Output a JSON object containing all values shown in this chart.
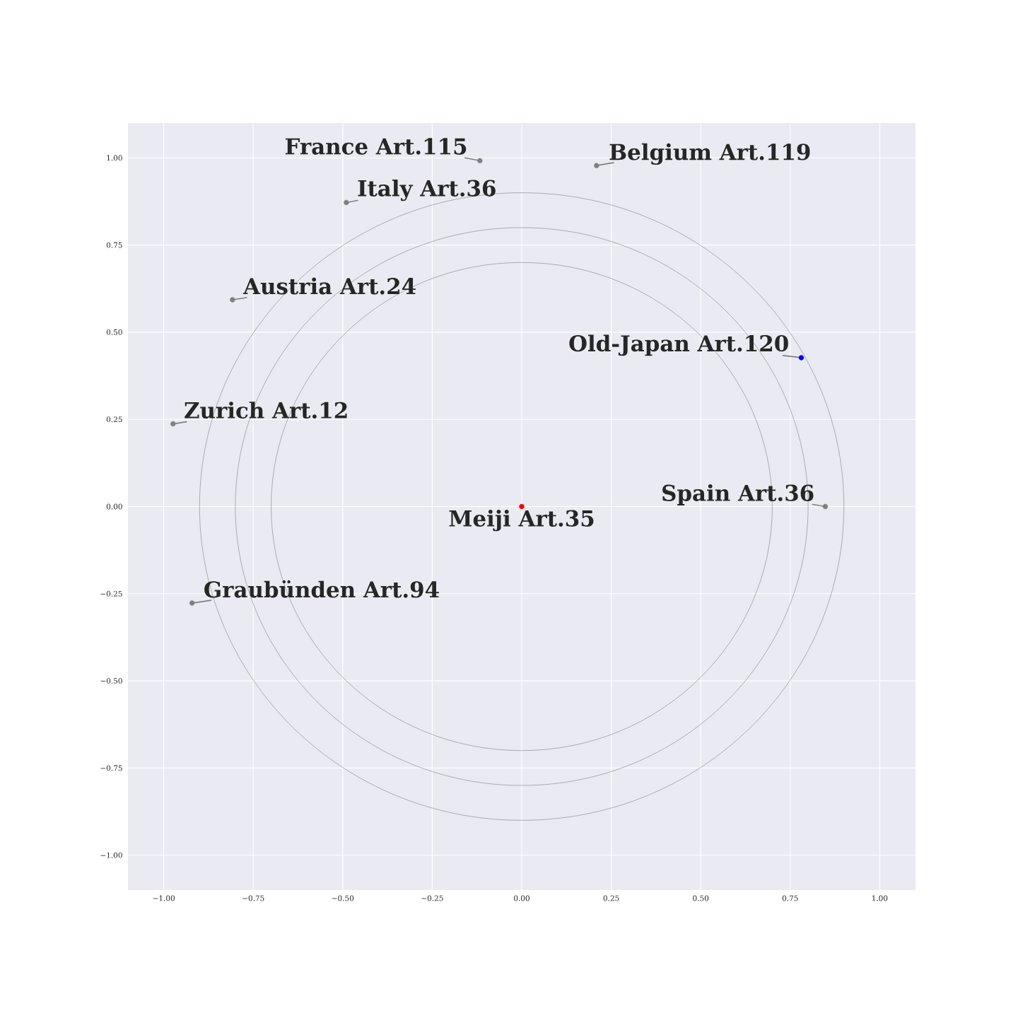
{
  "chart_data": {
    "type": "scatter",
    "grid": true,
    "marker": "circle",
    "xlim": [
      -1.1,
      1.1
    ],
    "ylim": [
      -1.1,
      1.1
    ],
    "xticks": [
      {
        "value": -1,
        "label": "−1.00"
      },
      {
        "value": -0.75,
        "label": "−0.75"
      },
      {
        "value": -0.5,
        "label": "−0.50"
      },
      {
        "value": -0.25,
        "label": "−0.25"
      },
      {
        "value": 0,
        "label": "0.00"
      },
      {
        "value": 0.25,
        "label": "0.25"
      },
      {
        "value": 0.5,
        "label": "0.50"
      },
      {
        "value": 0.75,
        "label": "0.75"
      },
      {
        "value": 1,
        "label": "1.00"
      }
    ],
    "yticks": [
      {
        "value": -1,
        "label": "−1.00"
      },
      {
        "value": -0.75,
        "label": "−0.75"
      },
      {
        "value": -0.5,
        "label": "−0.50"
      },
      {
        "value": -0.25,
        "label": "−0.25"
      },
      {
        "value": 0,
        "label": "0.00"
      },
      {
        "value": 0.25,
        "label": "0.25"
      },
      {
        "value": 0.5,
        "label": "0.50"
      },
      {
        "value": 0.75,
        "label": "0.75"
      },
      {
        "value": 1,
        "label": "1.00"
      }
    ],
    "x": [
      0,
      -0.117,
      0.209,
      -0.49,
      -0.808,
      -0.974,
      -0.921,
      0.848,
      0.781
    ],
    "values": [
      0,
      0.992,
      0.978,
      0.872,
      0.593,
      0.237,
      -0.277,
      0,
      0.427
    ],
    "colors": [
      "#ff0000",
      "#808080",
      "#808080",
      "#808080",
      "#808080",
      "#808080",
      "#808080",
      "#808080",
      "#0000ff"
    ],
    "annotations": [
      {
        "text": "Meiji Art.35",
        "x": 0,
        "y": 0
      },
      {
        "text": "France Art.115",
        "x": -0.117,
        "y": 0.992
      },
      {
        "text": "Belgium Art.119",
        "x": 0.209,
        "y": 0.978
      },
      {
        "text": "Italy Art.36",
        "x": -0.49,
        "y": 0.872
      },
      {
        "text": "Austria Art.24",
        "x": -0.808,
        "y": 0.593
      },
      {
        "text": "Zurich Art.12",
        "x": -0.974,
        "y": 0.237
      },
      {
        "text": "Graubünden Art.94",
        "x": -0.921,
        "y": -0.277
      },
      {
        "text": "Spain Art.36",
        "x": 0.848,
        "y": 0
      },
      {
        "text": "Old-Japan Art.120",
        "x": 0.781,
        "y": 0.427
      }
    ]
  }
}
